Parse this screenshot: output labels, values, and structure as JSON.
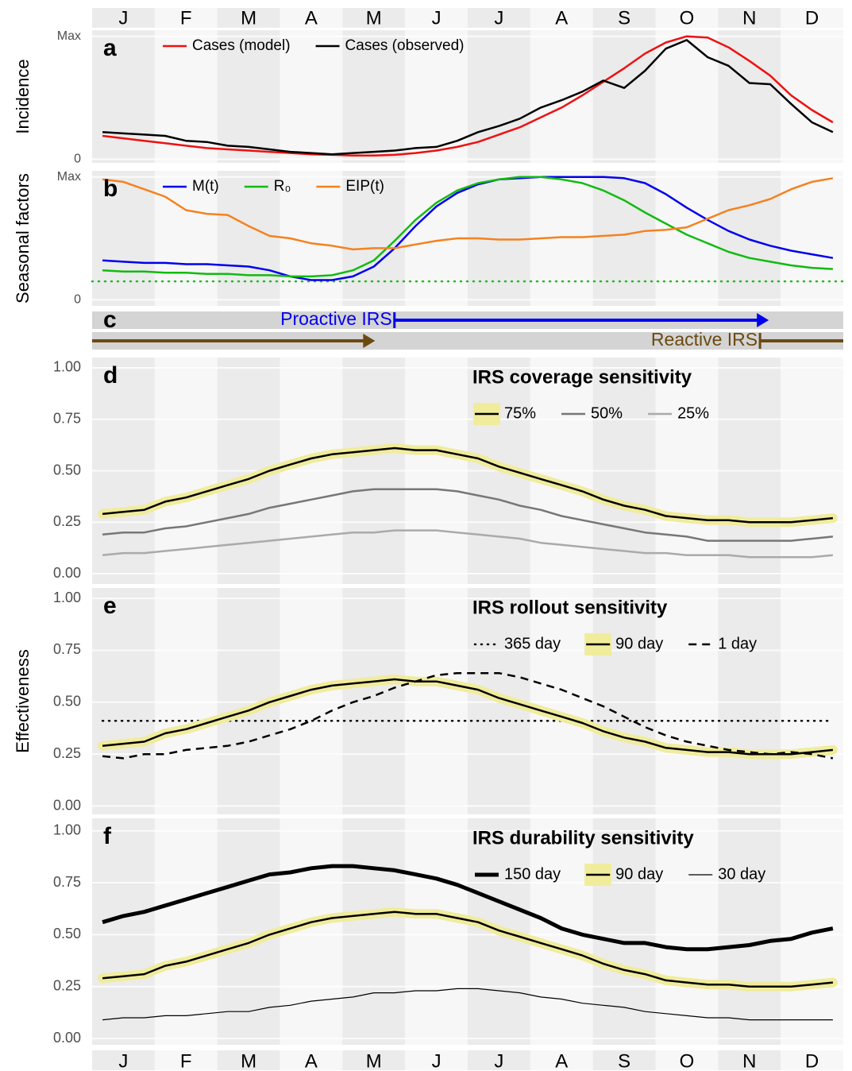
{
  "chart_data": [
    {
      "type": "line",
      "panel": "a",
      "ylabel": "Incidence",
      "categories": [
        null,
        "J",
        null,
        null,
        "F",
        null,
        null,
        "M",
        null,
        null,
        "A",
        null,
        null,
        "M",
        null,
        null,
        "J",
        null,
        null,
        "J",
        null,
        null,
        "A",
        null,
        null,
        "S",
        null,
        null,
        "O",
        null,
        null,
        "N",
        null,
        null,
        "D",
        null
      ],
      "ylim": [
        -0.03,
        1.05
      ],
      "yticks": [
        0,
        {
          "value": 1,
          "label": "Max"
        }
      ],
      "grid": true,
      "series": [
        {
          "name": "Cases (model)",
          "color": "#ee1111",
          "values": [
            0.19,
            0.17,
            0.15,
            0.13,
            0.11,
            0.09,
            0.08,
            0.07,
            0.06,
            0.05,
            0.04,
            0.035,
            0.03,
            0.03,
            0.035,
            0.05,
            0.07,
            0.1,
            0.14,
            0.2,
            0.26,
            0.34,
            0.42,
            0.52,
            0.63,
            0.74,
            0.86,
            0.95,
            1.0,
            0.99,
            0.91,
            0.8,
            0.68,
            0.52,
            0.4,
            0.3
          ]
        },
        {
          "name": "Cases (observed)",
          "color": "#000000",
          "values": [
            0.22,
            0.21,
            0.2,
            0.19,
            0.15,
            0.14,
            0.11,
            0.1,
            0.08,
            0.06,
            0.05,
            0.04,
            0.05,
            0.06,
            0.07,
            0.09,
            0.1,
            0.15,
            0.22,
            0.27,
            0.33,
            0.42,
            0.48,
            0.55,
            0.64,
            0.58,
            0.72,
            0.9,
            0.97,
            0.83,
            0.76,
            0.62,
            0.61,
            0.45,
            0.3,
            0.22
          ]
        }
      ]
    },
    {
      "type": "line",
      "panel": "b",
      "ylabel": "Seasonal factors",
      "categories": [
        null,
        "J",
        null,
        null,
        "F",
        null,
        null,
        "M",
        null,
        null,
        "A",
        null,
        null,
        "M",
        null,
        null,
        "J",
        null,
        null,
        "J",
        null,
        null,
        "A",
        null,
        null,
        "S",
        null,
        null,
        "O",
        null,
        null,
        "N",
        null,
        null,
        "D",
        null
      ],
      "ylim": [
        -0.05,
        1.05
      ],
      "yticks": [
        0,
        {
          "value": 1,
          "label": "Max"
        }
      ],
      "grid": true,
      "reference_line": {
        "value": 0.15,
        "color": "#22bb22",
        "dash": "dotted"
      },
      "series": [
        {
          "name": "M(t)",
          "color": "#0000ee",
          "values": [
            0.32,
            0.31,
            0.3,
            0.3,
            0.29,
            0.29,
            0.28,
            0.27,
            0.24,
            0.19,
            0.16,
            0.16,
            0.19,
            0.27,
            0.42,
            0.6,
            0.76,
            0.87,
            0.94,
            0.98,
            0.99,
            1.0,
            1.0,
            1.0,
            1.0,
            0.99,
            0.95,
            0.86,
            0.75,
            0.65,
            0.56,
            0.49,
            0.44,
            0.4,
            0.37,
            0.34
          ]
        },
        {
          "name": "R₀",
          "color": "#11bb11",
          "values": [
            0.24,
            0.23,
            0.23,
            0.22,
            0.22,
            0.21,
            0.21,
            0.2,
            0.2,
            0.19,
            0.19,
            0.2,
            0.24,
            0.32,
            0.48,
            0.65,
            0.79,
            0.89,
            0.95,
            0.98,
            1.0,
            1.0,
            0.98,
            0.95,
            0.89,
            0.81,
            0.71,
            0.62,
            0.53,
            0.46,
            0.39,
            0.34,
            0.31,
            0.28,
            0.26,
            0.25
          ]
        },
        {
          "name": "EIP(t)",
          "color": "#f5821f",
          "values": [
            0.98,
            0.96,
            0.9,
            0.84,
            0.73,
            0.7,
            0.69,
            0.6,
            0.52,
            0.5,
            0.46,
            0.44,
            0.41,
            0.42,
            0.42,
            0.45,
            0.48,
            0.5,
            0.5,
            0.49,
            0.49,
            0.5,
            0.51,
            0.51,
            0.52,
            0.53,
            0.56,
            0.57,
            0.59,
            0.66,
            0.73,
            0.77,
            0.82,
            0.9,
            0.96,
            0.99
          ]
        }
      ]
    },
    {
      "type": "timeline",
      "panel": "c",
      "xlim": [
        0,
        12
      ],
      "intervals": [
        {
          "label": "Proactive IRS",
          "color": "#0000ee",
          "segments": [
            [
              4.83,
              10.81
            ]
          ]
        },
        {
          "label": "Reactive IRS",
          "color": "#6b4a10",
          "segments": [
            [
              10.67,
              12
            ],
            [
              0,
              4.52
            ]
          ]
        }
      ]
    },
    {
      "type": "line",
      "panel": "d",
      "legend_title": "IRS coverage sensitivity",
      "categories": [
        null,
        "J",
        null,
        null,
        "F",
        null,
        null,
        "M",
        null,
        null,
        "A",
        null,
        null,
        "M",
        null,
        null,
        "J",
        null,
        null,
        "J",
        null,
        null,
        "A",
        null,
        null,
        "S",
        null,
        null,
        "O",
        null,
        null,
        "N",
        null,
        null,
        "D",
        null
      ],
      "ylim": [
        -0.05,
        1.05
      ],
      "yticks": [
        {
          "value": 0,
          "label": "0.00"
        },
        0.25,
        {
          "value": 0.5,
          "label": "0.50"
        },
        0.75,
        {
          "value": 1,
          "label": "1.00"
        }
      ],
      "grid": true,
      "series": [
        {
          "name": "75%",
          "color": "#000000",
          "highlight": "#f0ec9c",
          "values": [
            0.29,
            0.3,
            0.31,
            0.35,
            0.37,
            0.4,
            0.43,
            0.46,
            0.5,
            0.53,
            0.56,
            0.58,
            0.59,
            0.6,
            0.61,
            0.6,
            0.6,
            0.58,
            0.56,
            0.52,
            0.49,
            0.46,
            0.43,
            0.4,
            0.36,
            0.33,
            0.31,
            0.28,
            0.27,
            0.26,
            0.26,
            0.25,
            0.25,
            0.25,
            0.26,
            0.27
          ]
        },
        {
          "name": "50%",
          "color": "#777777",
          "values": [
            0.19,
            0.2,
            0.2,
            0.22,
            0.23,
            0.25,
            0.27,
            0.29,
            0.32,
            0.34,
            0.36,
            0.38,
            0.4,
            0.41,
            0.41,
            0.41,
            0.41,
            0.4,
            0.38,
            0.36,
            0.33,
            0.31,
            0.28,
            0.26,
            0.24,
            0.22,
            0.2,
            0.19,
            0.18,
            0.16,
            0.16,
            0.16,
            0.16,
            0.16,
            0.17,
            0.18
          ]
        },
        {
          "name": "25%",
          "color": "#aaaaaa",
          "values": [
            0.09,
            0.1,
            0.1,
            0.11,
            0.12,
            0.13,
            0.14,
            0.15,
            0.16,
            0.17,
            0.18,
            0.19,
            0.2,
            0.2,
            0.21,
            0.21,
            0.21,
            0.2,
            0.19,
            0.18,
            0.17,
            0.15,
            0.14,
            0.13,
            0.12,
            0.11,
            0.1,
            0.1,
            0.09,
            0.09,
            0.09,
            0.08,
            0.08,
            0.08,
            0.08,
            0.09
          ]
        }
      ]
    },
    {
      "type": "line",
      "panel": "e",
      "ylabel": "Effectiveness",
      "legend_title": "IRS rollout sensitivity",
      "categories": [
        null,
        "J",
        null,
        null,
        "F",
        null,
        null,
        "M",
        null,
        null,
        "A",
        null,
        null,
        "M",
        null,
        null,
        "J",
        null,
        null,
        "J",
        null,
        null,
        "A",
        null,
        null,
        "S",
        null,
        null,
        "O",
        null,
        null,
        "N",
        null,
        null,
        "D",
        null
      ],
      "ylim": [
        -0.04,
        1.05
      ],
      "yticks": [
        {
          "value": 0,
          "label": "0.00"
        },
        0.25,
        {
          "value": 0.5,
          "label": "0.50"
        },
        0.75,
        {
          "value": 1,
          "label": "1.00"
        }
      ],
      "grid": true,
      "series": [
        {
          "name": "365 day",
          "color": "#000000",
          "dash": "dotted",
          "values": [
            0.41,
            0.41,
            0.41,
            0.41,
            0.41,
            0.41,
            0.41,
            0.41,
            0.41,
            0.41,
            0.41,
            0.41,
            0.41,
            0.41,
            0.41,
            0.41,
            0.41,
            0.41,
            0.41,
            0.41,
            0.41,
            0.41,
            0.41,
            0.41,
            0.41,
            0.41,
            0.41,
            0.41,
            0.41,
            0.41,
            0.41,
            0.41,
            0.41,
            0.41,
            0.41,
            0.41
          ]
        },
        {
          "name": "90 day",
          "color": "#000000",
          "highlight": "#f0ec9c",
          "values": [
            0.29,
            0.3,
            0.31,
            0.35,
            0.37,
            0.4,
            0.43,
            0.46,
            0.5,
            0.53,
            0.56,
            0.58,
            0.59,
            0.6,
            0.61,
            0.6,
            0.6,
            0.58,
            0.56,
            0.52,
            0.49,
            0.46,
            0.43,
            0.4,
            0.36,
            0.33,
            0.31,
            0.28,
            0.27,
            0.26,
            0.26,
            0.25,
            0.25,
            0.25,
            0.26,
            0.27
          ]
        },
        {
          "name": "1 day",
          "color": "#000000",
          "dash": "dashed",
          "values": [
            0.24,
            0.23,
            0.25,
            0.25,
            0.27,
            0.28,
            0.29,
            0.31,
            0.34,
            0.37,
            0.41,
            0.46,
            0.5,
            0.53,
            0.57,
            0.6,
            0.63,
            0.64,
            0.64,
            0.64,
            0.62,
            0.59,
            0.56,
            0.52,
            0.48,
            0.43,
            0.38,
            0.34,
            0.31,
            0.29,
            0.27,
            0.26,
            0.25,
            0.26,
            0.25,
            0.23
          ]
        }
      ]
    },
    {
      "type": "line",
      "panel": "f",
      "legend_title": "IRS durability sensitivity",
      "categories": [
        null,
        "J",
        null,
        null,
        "F",
        null,
        null,
        "M",
        null,
        null,
        "A",
        null,
        null,
        "M",
        null,
        null,
        "J",
        null,
        null,
        "J",
        null,
        null,
        "A",
        null,
        null,
        "S",
        null,
        null,
        "O",
        null,
        null,
        "N",
        null,
        null,
        "D",
        null
      ],
      "ylim": [
        -0.03,
        1.06
      ],
      "yticks": [
        {
          "value": 0,
          "label": "0.00"
        },
        0.25,
        {
          "value": 0.5,
          "label": "0.50"
        },
        0.75,
        {
          "value": 1,
          "label": "1.00"
        }
      ],
      "grid": true,
      "series": [
        {
          "name": "150 day",
          "color": "#000000",
          "width": 5,
          "values": [
            0.56,
            0.59,
            0.61,
            0.64,
            0.67,
            0.7,
            0.73,
            0.76,
            0.79,
            0.8,
            0.82,
            0.83,
            0.83,
            0.82,
            0.81,
            0.79,
            0.77,
            0.74,
            0.7,
            0.66,
            0.62,
            0.58,
            0.53,
            0.5,
            0.48,
            0.46,
            0.46,
            0.44,
            0.43,
            0.43,
            0.44,
            0.45,
            0.47,
            0.48,
            0.51,
            0.53
          ]
        },
        {
          "name": "90 day",
          "color": "#000000",
          "highlight": "#f0ec9c",
          "values": [
            0.29,
            0.3,
            0.31,
            0.35,
            0.37,
            0.4,
            0.43,
            0.46,
            0.5,
            0.53,
            0.56,
            0.58,
            0.59,
            0.6,
            0.61,
            0.6,
            0.6,
            0.58,
            0.56,
            0.52,
            0.49,
            0.46,
            0.43,
            0.4,
            0.36,
            0.33,
            0.31,
            0.28,
            0.27,
            0.26,
            0.26,
            0.25,
            0.25,
            0.25,
            0.26,
            0.27
          ]
        },
        {
          "name": "30 day",
          "color": "#000000",
          "width": 1.2,
          "values": [
            0.09,
            0.1,
            0.1,
            0.11,
            0.11,
            0.12,
            0.13,
            0.13,
            0.15,
            0.16,
            0.18,
            0.19,
            0.2,
            0.22,
            0.22,
            0.23,
            0.23,
            0.24,
            0.24,
            0.23,
            0.22,
            0.2,
            0.19,
            0.17,
            0.16,
            0.15,
            0.13,
            0.12,
            0.11,
            0.1,
            0.1,
            0.09,
            0.09,
            0.09,
            0.09,
            0.09
          ]
        }
      ]
    }
  ]
}
